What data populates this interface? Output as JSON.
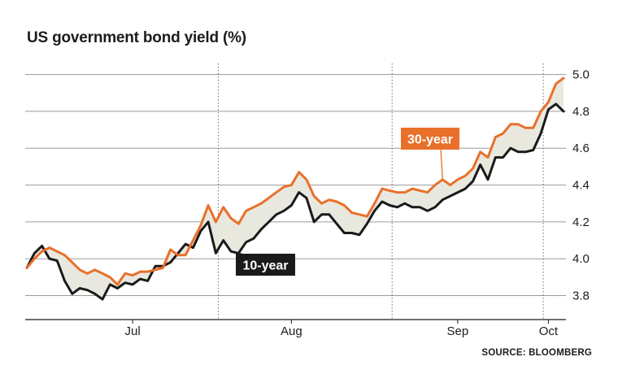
{
  "title": "US government bond yield (%)",
  "source": "SOURCE: BLOOMBERG",
  "colors": {
    "series_30y": "#e8702a",
    "series_10y": "#1a1a1a",
    "fill_between": "#e9e8df",
    "grid": "#9a9a9a",
    "callout_30y_bg": "#e8702a",
    "callout_10y_bg": "#1a1a1a"
  },
  "chart_data": {
    "type": "line",
    "title": "US government bond yield (%)",
    "xlabel": "",
    "ylabel": "",
    "ylim": [
      3.67,
      5.06
    ],
    "yticks": [
      3.8,
      4.0,
      4.2,
      4.4,
      4.6,
      4.8,
      5.0
    ],
    "ytick_labels": [
      "3.8",
      "4.0",
      "4.2",
      "4.4",
      "4.6",
      "4.8",
      "5.0"
    ],
    "month_labels": [
      {
        "label": "Jul",
        "x": "2023-07-14"
      },
      {
        "label": "Aug",
        "x": "2023-08-14"
      },
      {
        "label": "Sep",
        "x": "2023-09-14"
      },
      {
        "label": "Oct",
        "x": "2023-10-02"
      }
    ],
    "month_dividers": [
      "2023-07-31",
      "2023-08-31",
      "2023-09-29"
    ],
    "grid": true,
    "y_axis_position": "right",
    "fill_between_series": true,
    "x": [
      "2023-06-23",
      "2023-06-26",
      "2023-06-27",
      "2023-06-28",
      "2023-06-29",
      "2023-06-30",
      "2023-07-03",
      "2023-07-05",
      "2023-07-06",
      "2023-07-07",
      "2023-07-10",
      "2023-07-11",
      "2023-07-12",
      "2023-07-13",
      "2023-07-14",
      "2023-07-17",
      "2023-07-18",
      "2023-07-19",
      "2023-07-20",
      "2023-07-21",
      "2023-07-24",
      "2023-07-25",
      "2023-07-26",
      "2023-07-27",
      "2023-07-28",
      "2023-07-31",
      "2023-08-01",
      "2023-08-02",
      "2023-08-03",
      "2023-08-04",
      "2023-08-07",
      "2023-08-08",
      "2023-08-09",
      "2023-08-10",
      "2023-08-11",
      "2023-08-14",
      "2023-08-15",
      "2023-08-16",
      "2023-08-17",
      "2023-08-18",
      "2023-08-21",
      "2023-08-22",
      "2023-08-23",
      "2023-08-24",
      "2023-08-25",
      "2023-08-28",
      "2023-08-29",
      "2023-08-30",
      "2023-08-31",
      "2023-09-01",
      "2023-09-05",
      "2023-09-06",
      "2023-09-07",
      "2023-09-08",
      "2023-09-11",
      "2023-09-12",
      "2023-09-13",
      "2023-09-14",
      "2023-09-15",
      "2023-09-18",
      "2023-09-19",
      "2023-09-20",
      "2023-09-21",
      "2023-09-22",
      "2023-09-25",
      "2023-09-26",
      "2023-09-27",
      "2023-09-28",
      "2023-09-29",
      "2023-10-02",
      "2023-10-03",
      "2023-10-04"
    ],
    "series": [
      {
        "name": "30-year",
        "color": "#e8702a",
        "label_anchor": "2023-09-12",
        "values": [
          3.95,
          4.0,
          4.04,
          4.06,
          4.04,
          4.02,
          3.98,
          3.94,
          3.92,
          3.94,
          3.92,
          3.9,
          3.86,
          3.92,
          3.91,
          3.93,
          3.93,
          3.94,
          3.95,
          4.05,
          4.02,
          4.02,
          4.1,
          4.18,
          4.29,
          4.2,
          4.28,
          4.22,
          4.19,
          4.26,
          4.28,
          4.3,
          4.33,
          4.36,
          4.39,
          4.4,
          4.47,
          4.43,
          4.34,
          4.3,
          4.32,
          4.31,
          4.29,
          4.25,
          4.24,
          4.23,
          4.3,
          4.38,
          4.37,
          4.36,
          4.36,
          4.38,
          4.37,
          4.36,
          4.4,
          4.43,
          4.4,
          4.43,
          4.45,
          4.49,
          4.58,
          4.55,
          4.66,
          4.68,
          4.73,
          4.73,
          4.71,
          4.71,
          4.8,
          4.85,
          4.95,
          4.98
        ]
      },
      {
        "name": "10-year",
        "color": "#1a1a1a",
        "label_anchor": "2023-08-02",
        "values": [
          3.95,
          4.03,
          4.07,
          4.0,
          3.99,
          3.88,
          3.81,
          3.84,
          3.83,
          3.81,
          3.78,
          3.86,
          3.84,
          3.87,
          3.86,
          3.89,
          3.88,
          3.96,
          3.96,
          3.98,
          4.03,
          4.08,
          4.06,
          4.15,
          4.2,
          4.03,
          4.1,
          4.04,
          4.03,
          4.09,
          4.11,
          4.16,
          4.2,
          4.24,
          4.26,
          4.29,
          4.36,
          4.33,
          4.2,
          4.24,
          4.24,
          4.19,
          4.14,
          4.14,
          4.13,
          4.19,
          4.26,
          4.31,
          4.29,
          4.28,
          4.3,
          4.28,
          4.28,
          4.26,
          4.28,
          4.32,
          4.34,
          4.36,
          4.38,
          4.42,
          4.51,
          4.43,
          4.55,
          4.55,
          4.6,
          4.58,
          4.58,
          4.59,
          4.68,
          4.81,
          4.84,
          4.8
        ]
      }
    ]
  }
}
